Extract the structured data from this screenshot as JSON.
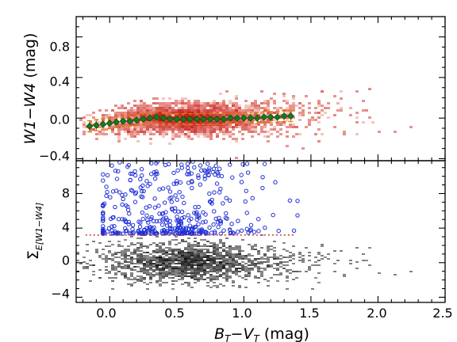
{
  "chart_data": [
    {
      "type": "scatter",
      "panel": "top",
      "ylabel": "W1−W4 (mag)",
      "ylim": [
        -0.42,
        1.0
      ],
      "yticks": [
        -0.4,
        0.0,
        0.4,
        0.8
      ],
      "ytick_labels": [
        "−0.4",
        "0.0",
        "0.4",
        "0.8"
      ],
      "xlim": [
        -0.25,
        2.5
      ],
      "background": "2D density histogram (red colormap) of individual stars",
      "colors": {
        "density": "#d7301f",
        "binned_points": "#1a7a1a",
        "error_bars": "#e07b00"
      },
      "series": [
        {
          "values_note": "binned median W1-W4 with error bars",
          "x": [
            -0.15,
            -0.1,
            -0.05,
            0.0,
            0.05,
            0.1,
            0.15,
            0.2,
            0.25,
            0.3,
            0.35,
            0.4,
            0.45,
            0.5,
            0.55,
            0.6,
            0.65,
            0.7,
            0.75,
            0.8,
            0.85,
            0.9,
            0.95,
            1.0,
            1.05,
            1.1,
            1.15,
            1.2,
            1.25,
            1.3,
            1.35
          ],
          "y": [
            -0.08,
            -0.07,
            -0.06,
            -0.05,
            -0.04,
            -0.03,
            -0.03,
            -0.02,
            -0.01,
            0.0,
            0.01,
            0.0,
            -0.01,
            -0.01,
            -0.01,
            -0.01,
            -0.01,
            -0.01,
            -0.01,
            -0.01,
            -0.01,
            0.0,
            0.0,
            0.0,
            0.0,
            0.0,
            0.01,
            0.01,
            0.01,
            0.02,
            0.02
          ]
        }
      ]
    },
    {
      "type": "scatter",
      "panel": "bottom",
      "xlabel": "B_T−V_T (mag)",
      "ylabel": "Σ_E[W1−W4]",
      "xlim": [
        -0.25,
        2.5
      ],
      "xticks": [
        0.0,
        0.5,
        1.0,
        1.5,
        2.0,
        2.5
      ],
      "xtick_labels": [
        "0.0",
        "0.5",
        "1.0",
        "1.5",
        "2.0",
        "2.5"
      ],
      "ylim": [
        -4.6,
        11.8
      ],
      "yticks": [
        -4,
        0,
        4,
        8
      ],
      "ytick_labels": [
        "−4",
        "0",
        "4",
        "8"
      ],
      "threshold": 3.2,
      "background": "2D density histogram (greyscale) of individual stars",
      "colors": {
        "density": "#222222",
        "outliers": "#1f2fd6",
        "threshold": "#c0392b"
      },
      "series": [
        {
          "values_note": "stars with significance above threshold (blue open circles)",
          "x_range": [
            -0.05,
            1.4
          ],
          "y_range": [
            3.2,
            11.5
          ]
        }
      ]
    }
  ],
  "labels": {
    "top_ylabel_w1": "W1",
    "top_ylabel_minus": "−",
    "top_ylabel_w4": "W4",
    "top_ylabel_unit": " (mag)",
    "bottom_ylabel_sigma": "Σ",
    "bottom_ylabel_sub": "E[W1−W4]",
    "xlabel_b": "B",
    "xlabel_sub_t1": "T",
    "xlabel_minus": "−",
    "xlabel_v": "V",
    "xlabel_sub_t2": "T",
    "xlabel_unit": " (mag)"
  }
}
